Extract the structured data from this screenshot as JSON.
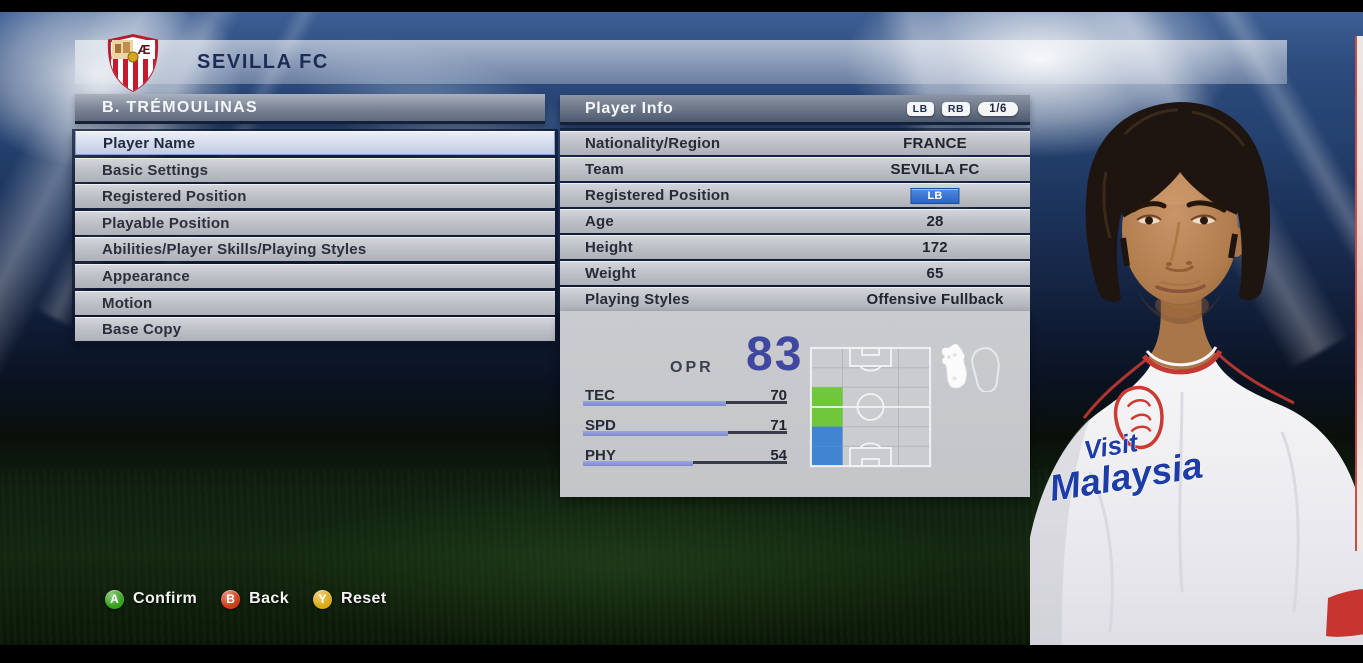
{
  "team_header": {
    "name": "SEVILLA FC",
    "crest_icon": "sevilla-fc-crest"
  },
  "left_panel": {
    "title": "B. TRÉMOULINAS",
    "selected_index": 0,
    "menu_items": [
      {
        "label": "Player Name"
      },
      {
        "label": "Basic Settings"
      },
      {
        "label": "Registered Position"
      },
      {
        "label": "Playable Position"
      },
      {
        "label": "Abilities/Player Skills/Playing Styles"
      },
      {
        "label": "Appearance"
      },
      {
        "label": "Motion"
      },
      {
        "label": "Base Copy"
      }
    ]
  },
  "player_info": {
    "title": "Player Info",
    "shoulder_buttons": [
      {
        "label": "LB"
      },
      {
        "label": "RB"
      }
    ],
    "page_indicator": "1/6",
    "rows": [
      {
        "label": "Nationality/Region",
        "value": "FRANCE"
      },
      {
        "label": "Team",
        "value": "SEVILLA FC"
      },
      {
        "label": "Registered Position",
        "value": "LB",
        "badge": true
      },
      {
        "label": "Age",
        "value": "28"
      },
      {
        "label": "Height",
        "value": "172"
      },
      {
        "label": "Weight",
        "value": "65"
      },
      {
        "label": "Playing Styles",
        "value": "Offensive Fullback"
      }
    ],
    "overall_rating": {
      "label": "OPR",
      "value": "83"
    },
    "stats": [
      {
        "label": "TEC",
        "value": 70
      },
      {
        "label": "SPD",
        "value": 71
      },
      {
        "label": "PHY",
        "value": 54
      }
    ],
    "position_map": {
      "grid": {
        "cols": 3,
        "rows": 6
      },
      "cells": [
        {
          "col": 0,
          "row": 2,
          "type": "registered"
        },
        {
          "col": 0,
          "row": 3,
          "type": "registered"
        },
        {
          "col": 0,
          "row": 4,
          "type": "playable"
        },
        {
          "col": 0,
          "row": 5,
          "type": "playable"
        }
      ],
      "registered_color": "#6fc83c",
      "playable_color": "#4184d2"
    },
    "foot_icons": [
      "boot-sole-filled-icon",
      "boot-sole-outline-icon"
    ]
  },
  "footer": {
    "buttons": [
      {
        "key": "A",
        "label": "Confirm",
        "key_color": "#36a31d"
      },
      {
        "key": "B",
        "label": "Back",
        "key_color": "#d23c17"
      },
      {
        "key": "Y",
        "label": "Reset",
        "key_color": "#dcab14"
      }
    ]
  },
  "colors": {
    "accent_blue": "#2a64c8",
    "stat_bar_fill": "#8c97d8",
    "stat_bar_track": "#383c46",
    "opr_value": "#3f47a0"
  }
}
